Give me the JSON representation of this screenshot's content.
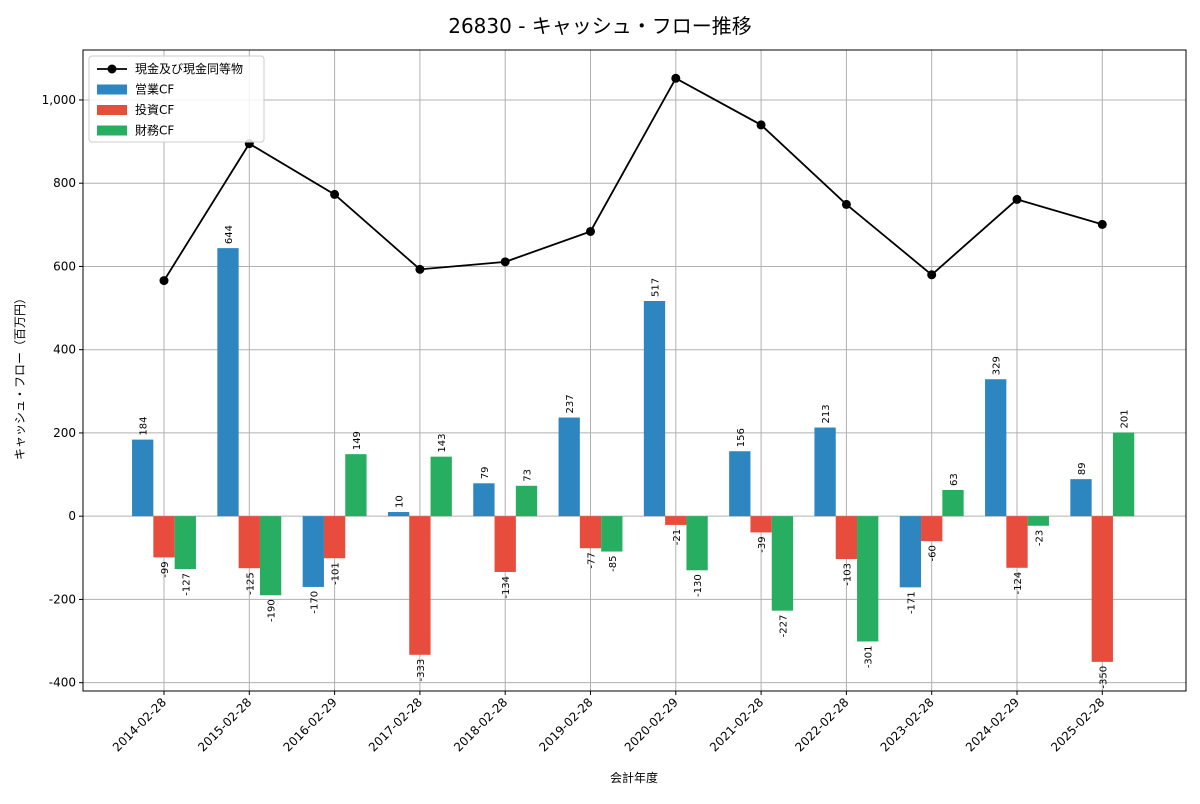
{
  "chart_data": {
    "type": "bar",
    "title": "26830 - キャッシュ・フロー推移",
    "xlabel": "会計年度",
    "ylabel": "キャッシュ・フロー（百万円）",
    "ylim": [
      -420,
      1120
    ],
    "yticks": [
      -400,
      -200,
      0,
      200,
      400,
      600,
      800,
      1000
    ],
    "ytick_labels": [
      "-400",
      "-200",
      "0",
      "200",
      "400",
      "600",
      "800",
      "1,000"
    ],
    "grid": true,
    "legend_position": "top-left",
    "categories": [
      "2014-02-28",
      "2015-02-28",
      "2016-02-29",
      "2017-02-28",
      "2018-02-28",
      "2019-02-28",
      "2020-02-29",
      "2021-02-28",
      "2022-02-28",
      "2023-02-28",
      "2024-02-29",
      "2025-02-28"
    ],
    "series": [
      {
        "name": "営業CF",
        "type": "bar",
        "color": "#2e86c1",
        "values": [
          184,
          644,
          -170,
          10,
          79,
          237,
          517,
          156,
          213,
          -171,
          329,
          89
        ]
      },
      {
        "name": "投資CF",
        "type": "bar",
        "color": "#e74c3c",
        "values": [
          -99,
          -125,
          -101,
          -333,
          -134,
          -77,
          -21,
          -39,
          -103,
          -60,
          -124,
          -350
        ]
      },
      {
        "name": "財務CF",
        "type": "bar",
        "color": "#27ae60",
        "values": [
          -127,
          -190,
          149,
          143,
          73,
          -85,
          -130,
          -227,
          -301,
          63,
          -23,
          201
        ]
      },
      {
        "name": "現金及び現金同等物",
        "type": "line",
        "color": "#000000",
        "values": [
          566,
          895,
          773,
          593,
          611,
          684,
          1052,
          940,
          749,
          580,
          761,
          701
        ]
      }
    ]
  }
}
